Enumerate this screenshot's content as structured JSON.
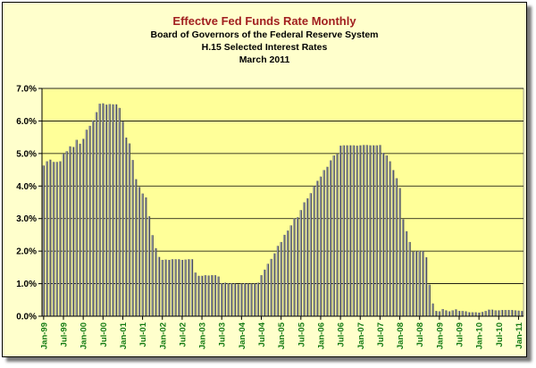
{
  "chart_data": {
    "type": "bar",
    "title": "Effectve Fed Funds Rate Monthly",
    "subtitle_lines": [
      "Board of Governors of the Federal Reserve System",
      "H.15 Selected Interest Rates",
      "March 2011"
    ],
    "xlabel": "",
    "ylabel": "",
    "ylim": [
      0,
      7
    ],
    "y_tick_labels": [
      "0.0%",
      "1.0%",
      "2.0%",
      "3.0%",
      "4.0%",
      "5.0%",
      "6.0%",
      "7.0%"
    ],
    "x_tick_labels": [
      "Jan-99",
      "Jul-99",
      "Jan-00",
      "Jul-00",
      "Jan-01",
      "Jul-01",
      "Jan-02",
      "Jul-02",
      "Jan-03",
      "Jul-03",
      "Jan-04",
      "Jul-04",
      "Jan-05",
      "Jul-05",
      "Jan-06",
      "Jul-06",
      "Jan-07",
      "Jul-07",
      "Jan-08",
      "Jul-08",
      "Jan-09",
      "Jul-09",
      "Jan-10",
      "Jul-10",
      "Jan-11"
    ],
    "grid": true,
    "legend": "none",
    "start_month": "Jan-99",
    "values": [
      4.63,
      4.76,
      4.81,
      4.74,
      4.74,
      4.76,
      4.99,
      5.07,
      5.22,
      5.2,
      5.42,
      5.3,
      5.45,
      5.73,
      5.85,
      6.02,
      6.27,
      6.53,
      6.54,
      6.5,
      6.52,
      6.51,
      6.51,
      6.4,
      5.98,
      5.49,
      5.31,
      4.8,
      4.21,
      3.97,
      3.77,
      3.65,
      3.07,
      2.49,
      2.09,
      1.82,
      1.73,
      1.74,
      1.73,
      1.75,
      1.75,
      1.75,
      1.73,
      1.74,
      1.75,
      1.75,
      1.34,
      1.24,
      1.24,
      1.26,
      1.25,
      1.26,
      1.26,
      1.22,
      1.01,
      1.03,
      1.01,
      1.01,
      1.0,
      0.98,
      1.0,
      1.01,
      1.0,
      1.0,
      1.0,
      1.03,
      1.26,
      1.43,
      1.61,
      1.76,
      1.93,
      2.16,
      2.28,
      2.5,
      2.63,
      2.79,
      3.0,
      3.04,
      3.26,
      3.5,
      3.62,
      3.78,
      4.0,
      4.16,
      4.29,
      4.49,
      4.59,
      4.79,
      4.94,
      4.99,
      5.24,
      5.25,
      5.25,
      5.25,
      5.25,
      5.24,
      5.25,
      5.26,
      5.26,
      5.25,
      5.25,
      5.25,
      5.26,
      5.02,
      4.94,
      4.76,
      4.49,
      4.24,
      3.94,
      2.98,
      2.61,
      2.28,
      1.98,
      2.0,
      2.01,
      2.0,
      1.81,
      0.97,
      0.39,
      0.16,
      0.15,
      0.22,
      0.18,
      0.15,
      0.18,
      0.21,
      0.16,
      0.16,
      0.15,
      0.12,
      0.12,
      0.12,
      0.11,
      0.13,
      0.16,
      0.2,
      0.2,
      0.18,
      0.18,
      0.19,
      0.19,
      0.19,
      0.19,
      0.18,
      0.17,
      0.16
    ]
  },
  "colors": {
    "bar": "#4a4d58",
    "bar_highlight": "#b4b7c4",
    "plot_bg": "#ffff99",
    "chart_bg": "#ffffcc",
    "title": "#a11f1f",
    "x_label": "#127a12"
  }
}
